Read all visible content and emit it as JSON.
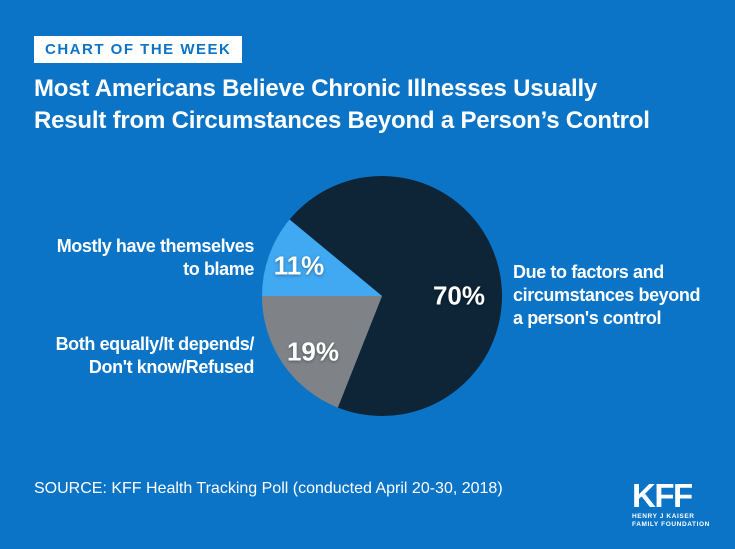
{
  "theme": {
    "background": "#0B74C7",
    "badge_background": "#FFFFFF",
    "badge_text": "#0B74C7",
    "text": "#FFFFFF"
  },
  "header": {
    "kicker": "CHART OF THE WEEK",
    "title": "Most Americans Believe Chronic Illnesses Usually\nResult from Circumstances Beyond a Person’s Control"
  },
  "chart_data": {
    "type": "pie",
    "title": "Most Americans Believe Chronic Illnesses Usually Result from Circumstances Beyond a Person’s Control",
    "start_angle_deg": 140.4,
    "direction": "clockwise",
    "legend_position": "labels-around-pie",
    "slices": [
      {
        "label": "Due to factors and\ncircumstances beyond\na person's control",
        "value": 70,
        "display": "70%",
        "color": "#0D2537"
      },
      {
        "label": "Both equally/It depends/\nDon't know/Refused",
        "value": 19,
        "display": "19%",
        "color": "#7F8387"
      },
      {
        "label": "Mostly have themselves\nto blame",
        "value": 11,
        "display": "11%",
        "color": "#41A8F2"
      }
    ]
  },
  "footer": {
    "source": "SOURCE: KFF Health Tracking Poll (conducted April 20-30, 2018)",
    "logo": {
      "text": "KFF",
      "line1": "HENRY J KAISER",
      "line2": "FAMILY FOUNDATION"
    }
  }
}
